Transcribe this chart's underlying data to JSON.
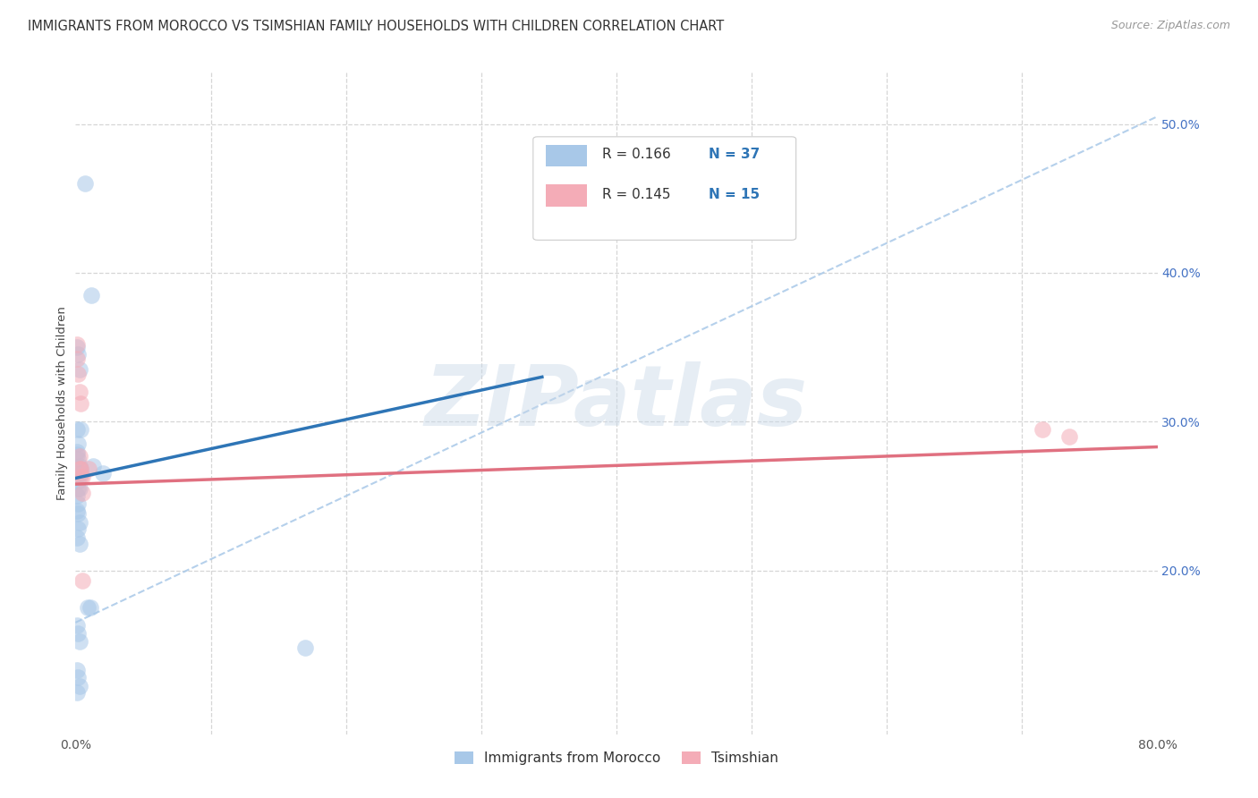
{
  "title": "IMMIGRANTS FROM MOROCCO VS TSIMSHIAN FAMILY HOUSEHOLDS WITH CHILDREN CORRELATION CHART",
  "source": "Source: ZipAtlas.com",
  "ylabel": "Family Households with Children",
  "xlim": [
    0,
    0.8
  ],
  "ylim": [
    0.09,
    0.535
  ],
  "xticks": [
    0.0,
    0.1,
    0.2,
    0.3,
    0.4,
    0.5,
    0.6,
    0.7,
    0.8
  ],
  "xticklabels": [
    "0.0%",
    "",
    "",
    "",
    "",
    "",
    "",
    "",
    "80.0%"
  ],
  "yticks": [
    0.2,
    0.3,
    0.4,
    0.5
  ],
  "watermark": "ZIPatlas",
  "legend_r1": "R = 0.166",
  "legend_n1": "N = 37",
  "legend_r2": "R = 0.145",
  "legend_n2": "N = 15",
  "blue_scatter_color": "#a8c8e8",
  "pink_scatter_color": "#f4acb7",
  "blue_line_color": "#2e75b6",
  "pink_line_color": "#e07080",
  "dashed_line_color": "#a8c8e8",
  "r_n_color": "#2e75b6",
  "tick_color": "#4472c4",
  "grid_color": "#cccccc",
  "blue_scatter_x": [
    0.007,
    0.012,
    0.02,
    0.001,
    0.002,
    0.003,
    0.004,
    0.001,
    0.002,
    0.001,
    0.001,
    0.002,
    0.003,
    0.004,
    0.004,
    0.002,
    0.003,
    0.001,
    0.002,
    0.001,
    0.002,
    0.003,
    0.002,
    0.001,
    0.003,
    0.009,
    0.011,
    0.013,
    0.001,
    0.002,
    0.003,
    0.001,
    0.002,
    0.001,
    0.003,
    0.17,
    0.002
  ],
  "blue_scatter_y": [
    0.46,
    0.385,
    0.265,
    0.35,
    0.345,
    0.335,
    0.295,
    0.295,
    0.285,
    0.28,
    0.278,
    0.275,
    0.27,
    0.268,
    0.265,
    0.26,
    0.255,
    0.25,
    0.245,
    0.24,
    0.238,
    0.232,
    0.228,
    0.222,
    0.218,
    0.175,
    0.175,
    0.27,
    0.163,
    0.158,
    0.152,
    0.133,
    0.128,
    0.118,
    0.122,
    0.148,
    0.255
  ],
  "pink_scatter_x": [
    0.001,
    0.001,
    0.002,
    0.003,
    0.004,
    0.003,
    0.003,
    0.004,
    0.004,
    0.005,
    0.005,
    0.01,
    0.715,
    0.735,
    0.005
  ],
  "pink_scatter_y": [
    0.352,
    0.342,
    0.332,
    0.32,
    0.312,
    0.277,
    0.268,
    0.268,
    0.263,
    0.263,
    0.252,
    0.268,
    0.295,
    0.29,
    0.193
  ],
  "blue_line_x": [
    0.0,
    0.345
  ],
  "blue_line_y": [
    0.262,
    0.33
  ],
  "pink_line_x": [
    0.0,
    0.8
  ],
  "pink_line_y": [
    0.258,
    0.283
  ],
  "dashed_line_x": [
    0.0,
    0.8
  ],
  "dashed_line_y": [
    0.165,
    0.505
  ],
  "background_color": "#ffffff",
  "title_fontsize": 10.5,
  "axis_label_fontsize": 9.5,
  "tick_fontsize": 10,
  "legend_fontsize": 11
}
